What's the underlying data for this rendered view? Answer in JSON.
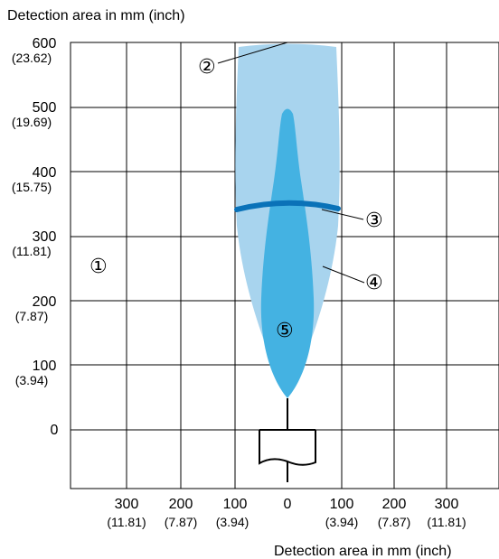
{
  "axis_titles": {
    "y": "Detection area in mm (inch)",
    "x": "Detection area in mm (inch)"
  },
  "y_ticks": [
    {
      "value": 600,
      "mm": "600",
      "inch": "(23.62)"
    },
    {
      "value": 500,
      "mm": "500",
      "inch": "(19.69)"
    },
    {
      "value": 400,
      "mm": "400",
      "inch": "(15.75)"
    },
    {
      "value": 300,
      "mm": "300",
      "inch": "(11.81)"
    },
    {
      "value": 200,
      "mm": "200",
      "inch": "(7.87)"
    },
    {
      "value": 100,
      "mm": "100",
      "inch": "(3.94)"
    },
    {
      "value": 0,
      "mm": "0",
      "inch": ""
    }
  ],
  "x_ticks": [
    {
      "value": -300,
      "mm": "300",
      "inch": "(11.81)"
    },
    {
      "value": -200,
      "mm": "200",
      "inch": "(7.87)"
    },
    {
      "value": -100,
      "mm": "100",
      "inch": "(3.94)"
    },
    {
      "value": 0,
      "mm": "0",
      "inch": ""
    },
    {
      "value": 100,
      "mm": "100",
      "inch": "(3.94)"
    },
    {
      "value": 200,
      "mm": "200",
      "inch": "(7.87)"
    },
    {
      "value": 300,
      "mm": "300",
      "inch": "(11.81)"
    }
  ],
  "callouts": {
    "c1": "①",
    "c2": "②",
    "c3": "③",
    "c4": "④",
    "c5": "⑤"
  },
  "colors": {
    "outer_area": "#a8d4ee",
    "inner_area": "#44b2e2",
    "marker_line": "#0a72b8",
    "grid": "#000000"
  }
}
